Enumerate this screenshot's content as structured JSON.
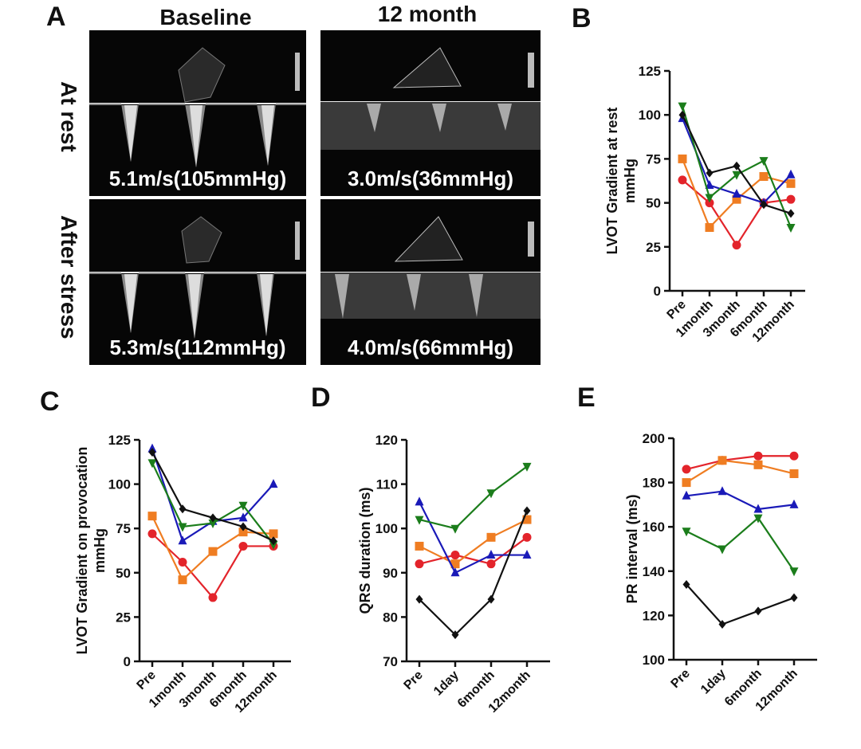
{
  "figure": {
    "panel_letters": {
      "a": "A",
      "b": "B",
      "c": "C",
      "d": "D",
      "e": "E"
    },
    "echo": {
      "col_titles": [
        "Baseline",
        "12 month"
      ],
      "row_labels": [
        "At rest",
        "After stress"
      ],
      "measurements": [
        "5.1m/s(105mmHg)",
        "3.0m/s(36mmHg)",
        "5.3m/s(112mmHg)",
        "4.0m/s(66mmHg)"
      ]
    }
  },
  "colors": {
    "red": "#e3242b",
    "orange": "#ef7d22",
    "blue": "#1a1ab8",
    "green": "#1b7d1b",
    "black": "#111111"
  },
  "chart_data": [
    {
      "panel": "B",
      "type": "line",
      "ylabel": "LVOT Gradient at rest\nmmHg",
      "categories": [
        "Pre",
        "1month",
        "3month",
        "6month",
        "12month"
      ],
      "ylim": [
        0,
        125
      ],
      "yticks": [
        0,
        25,
        50,
        75,
        100,
        125
      ],
      "series": [
        {
          "color": "red",
          "marker": "circle",
          "values": [
            63,
            50,
            26,
            50,
            52
          ]
        },
        {
          "color": "orange",
          "marker": "square",
          "values": [
            75,
            36,
            52,
            65,
            61
          ]
        },
        {
          "color": "blue",
          "marker": "triangle-up",
          "values": [
            98,
            60,
            55,
            50,
            66
          ]
        },
        {
          "color": "green",
          "marker": "triangle-down",
          "values": [
            105,
            53,
            66,
            74,
            36
          ]
        },
        {
          "color": "black",
          "marker": "diamond",
          "values": [
            100,
            67,
            71,
            49,
            44
          ]
        }
      ]
    },
    {
      "panel": "C",
      "type": "line",
      "ylabel": "LVOT Gradient on provocation\nmmHg",
      "categories": [
        "Pre",
        "1month",
        "3month",
        "6month",
        "12month"
      ],
      "ylim": [
        0,
        125
      ],
      "yticks": [
        0,
        25,
        50,
        75,
        100,
        125
      ],
      "series": [
        {
          "color": "red",
          "marker": "circle",
          "values": [
            72,
            56,
            36,
            65,
            65
          ]
        },
        {
          "color": "orange",
          "marker": "square",
          "values": [
            82,
            46,
            62,
            73,
            72
          ]
        },
        {
          "color": "blue",
          "marker": "triangle-up",
          "values": [
            120,
            68,
            79,
            81,
            100
          ]
        },
        {
          "color": "green",
          "marker": "triangle-down",
          "values": [
            112,
            76,
            78,
            88,
            66
          ]
        },
        {
          "color": "black",
          "marker": "diamond",
          "values": [
            118,
            86,
            81,
            76,
            68
          ]
        }
      ]
    },
    {
      "panel": "D",
      "type": "line",
      "ylabel": "QRS duration (ms)",
      "categories": [
        "Pre",
        "1day",
        "6month",
        "12month"
      ],
      "ylim": [
        70,
        120
      ],
      "yticks": [
        70,
        80,
        90,
        100,
        110,
        120
      ],
      "series": [
        {
          "color": "red",
          "marker": "circle",
          "values": [
            92,
            94,
            92,
            98
          ]
        },
        {
          "color": "orange",
          "marker": "square",
          "values": [
            96,
            92,
            98,
            102
          ]
        },
        {
          "color": "blue",
          "marker": "triangle-up",
          "values": [
            106,
            90,
            94,
            94
          ]
        },
        {
          "color": "green",
          "marker": "triangle-down",
          "values": [
            102,
            100,
            108,
            114
          ]
        },
        {
          "color": "black",
          "marker": "diamond",
          "values": [
            84,
            76,
            84,
            104
          ]
        }
      ]
    },
    {
      "panel": "E",
      "type": "line",
      "ylabel": "PR interval (ms)",
      "categories": [
        "Pre",
        "1day",
        "6month",
        "12month"
      ],
      "ylim": [
        100,
        200
      ],
      "yticks": [
        100,
        120,
        140,
        160,
        180,
        200
      ],
      "series": [
        {
          "color": "red",
          "marker": "circle",
          "values": [
            186,
            190,
            192,
            192
          ]
        },
        {
          "color": "orange",
          "marker": "square",
          "values": [
            180,
            190,
            188,
            184
          ]
        },
        {
          "color": "blue",
          "marker": "triangle-up",
          "values": [
            174,
            176,
            168,
            170
          ]
        },
        {
          "color": "green",
          "marker": "triangle-down",
          "values": [
            158,
            150,
            164,
            140
          ]
        },
        {
          "color": "black",
          "marker": "diamond",
          "values": [
            134,
            116,
            122,
            128
          ]
        }
      ]
    }
  ]
}
